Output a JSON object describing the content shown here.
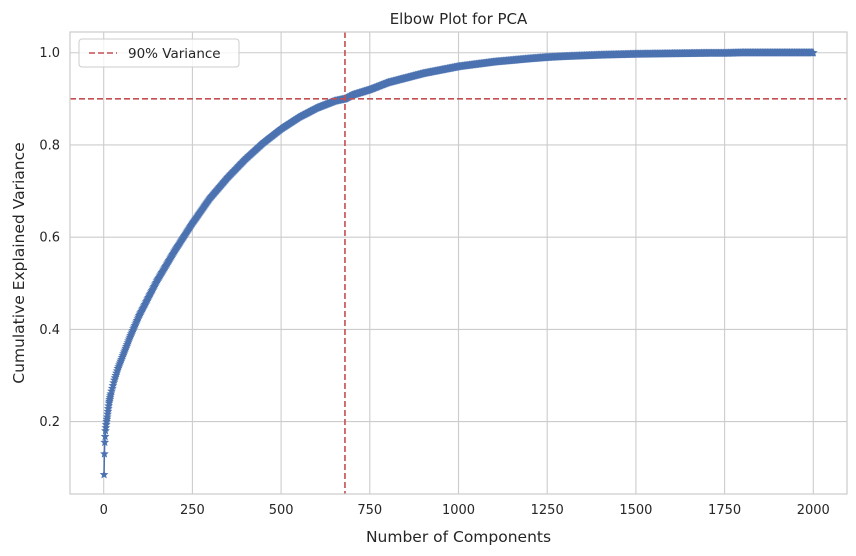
{
  "chart_data": {
    "type": "line",
    "title": "Elbow Plot for PCA",
    "xlabel": "Number of Components",
    "ylabel": "Cumulative Explained Variance",
    "xlim": [
      -95,
      2095
    ],
    "ylim": [
      0.043,
      1.045
    ],
    "xticks": [
      0,
      250,
      500,
      750,
      1000,
      1250,
      1500,
      1750,
      2000
    ],
    "yticks": [
      0.2,
      0.4,
      0.6,
      0.8,
      1.0
    ],
    "ytick_labels": [
      "0.2",
      "0.4",
      "0.6",
      "0.8",
      "1.0"
    ],
    "grid": true,
    "legend_position": "top-left",
    "series": [
      {
        "marker": "star",
        "color": "#4c72b0",
        "x": [
          1,
          2,
          3,
          5,
          8,
          10,
          15,
          20,
          30,
          40,
          50,
          75,
          100,
          150,
          200,
          250,
          300,
          350,
          400,
          450,
          500,
          550,
          600,
          650,
          680,
          700,
          750,
          800,
          900,
          1000,
          1100,
          1200,
          1250,
          1300,
          1400,
          1500,
          1600,
          1700,
          1750,
          1800,
          1900,
          2000
        ],
        "y": [
          0.085,
          0.13,
          0.155,
          0.18,
          0.2,
          0.21,
          0.24,
          0.26,
          0.29,
          0.315,
          0.335,
          0.385,
          0.43,
          0.505,
          0.57,
          0.63,
          0.685,
          0.73,
          0.77,
          0.805,
          0.835,
          0.86,
          0.88,
          0.895,
          0.9,
          0.908,
          0.92,
          0.935,
          0.955,
          0.97,
          0.98,
          0.987,
          0.99,
          0.992,
          0.995,
          0.997,
          0.998,
          0.999,
          0.999,
          1.0,
          1.0,
          1.0
        ]
      }
    ],
    "reference_lines": [
      {
        "orientation": "horizontal",
        "value": 0.9,
        "color": "#c44e52",
        "style": "dashed",
        "legend": "90% Variance"
      },
      {
        "orientation": "vertical",
        "value": 680,
        "color": "#c44e52",
        "style": "dashed"
      }
    ],
    "legend": [
      {
        "label": "90% Variance",
        "color": "#c44e52",
        "style": "dashed"
      }
    ]
  }
}
